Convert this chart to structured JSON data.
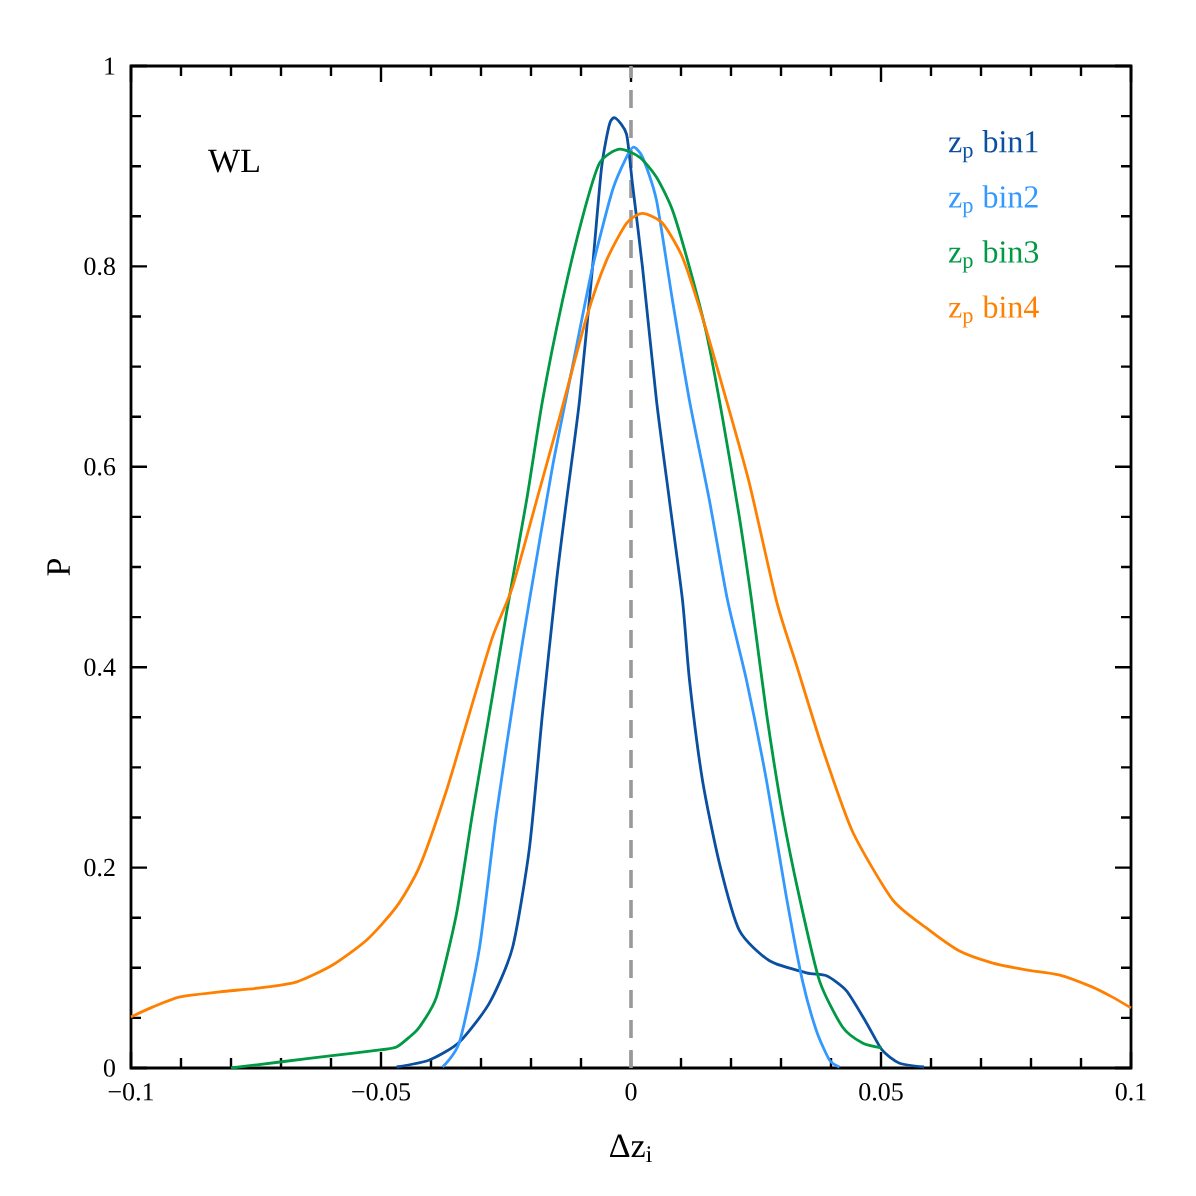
{
  "chart_data": {
    "type": "line",
    "xlabel": "Δz$_{i}$",
    "ylabel": "P",
    "annotations": [
      "WL"
    ],
    "legend": "top right",
    "xlim": [
      -0.1,
      0.1
    ],
    "ylim": [
      0,
      1
    ],
    "xticks": [
      {
        "value": -0.1,
        "label": "−0.1"
      },
      {
        "value": -0.09,
        "label": null
      },
      {
        "value": -0.08,
        "label": null
      },
      {
        "value": -0.07,
        "label": null
      },
      {
        "value": -0.06,
        "label": null
      },
      {
        "value": -0.05,
        "label": "−0.05"
      },
      {
        "value": -0.04,
        "label": null
      },
      {
        "value": -0.03,
        "label": null
      },
      {
        "value": -0.02,
        "label": null
      },
      {
        "value": -0.01,
        "label": null
      },
      0,
      {
        "value": 0.01,
        "label": null
      },
      {
        "value": 0.02,
        "label": null
      },
      {
        "value": 0.03,
        "label": null
      },
      {
        "value": 0.04,
        "label": null
      },
      0.05,
      {
        "value": 0.06,
        "label": null
      },
      {
        "value": 0.07,
        "label": null
      },
      {
        "value": 0.08,
        "label": null
      },
      {
        "value": 0.09,
        "label": null
      },
      0.1
    ],
    "yticks": [
      0,
      {
        "value": 0.05,
        "label": null
      },
      {
        "value": 0.1,
        "label": null
      },
      {
        "value": 0.15,
        "label": null
      },
      0.2,
      {
        "value": 0.25,
        "label": null
      },
      {
        "value": 0.3,
        "label": null
      },
      {
        "value": 0.35,
        "label": null
      },
      0.4,
      {
        "value": 0.45,
        "label": null
      },
      {
        "value": 0.5,
        "label": null
      },
      {
        "value": 0.55,
        "label": null
      },
      0.6,
      {
        "value": 0.65,
        "label": null
      },
      {
        "value": 0.7,
        "label": null
      },
      {
        "value": 0.75,
        "label": null
      },
      0.8,
      {
        "value": 0.85,
        "label": null
      },
      {
        "value": 0.9,
        "label": null
      },
      {
        "value": 0.95,
        "label": null
      },
      1
    ],
    "ref_lines": [
      {
        "axis": "x",
        "value": 0,
        "color": "#999999",
        "line_style": "dashed"
      }
    ],
    "series": [
      {
        "name": "z$_{p}$ bin1",
        "color": "#0a4fa0",
        "x": [
          -0.0469,
          -0.0403,
          -0.0343,
          -0.0283,
          -0.0237,
          -0.0203,
          -0.0177,
          -0.0149,
          -0.0129,
          -0.0103,
          -0.0077,
          -0.0059,
          -0.0043,
          -0.0031,
          -0.0009,
          0.0003,
          0.0023,
          0.0051,
          0.0077,
          0.0103,
          0.0117,
          0.0143,
          0.0177,
          0.0217,
          0.0277,
          0.0351,
          0.0391,
          0.0431,
          0.0471,
          0.0502,
          0.0536,
          0.0586
        ],
        "values": [
          0.001,
          0.008,
          0.026,
          0.065,
          0.12,
          0.22,
          0.354,
          0.486,
          0.566,
          0.666,
          0.799,
          0.898,
          0.942,
          0.948,
          0.932,
          0.882,
          0.799,
          0.666,
          0.566,
          0.467,
          0.387,
          0.287,
          0.204,
          0.137,
          0.107,
          0.095,
          0.092,
          0.077,
          0.045,
          0.018,
          0.005,
          0.001
        ]
      },
      {
        "name": "z$_{p}$ bin2",
        "color": "#3399ff",
        "x": [
          -0.0377,
          -0.0343,
          -0.0303,
          -0.0269,
          -0.0229,
          -0.0203,
          -0.0157,
          -0.0117,
          -0.0077,
          -0.0037,
          -0.0009,
          0.0005,
          0.0023,
          0.0051,
          0.0083,
          0.0117,
          0.0157,
          0.0193,
          0.0231,
          0.0271,
          0.0311,
          0.0343,
          0.0371,
          0.0397,
          0.0417
        ],
        "values": [
          0.001,
          0.026,
          0.12,
          0.254,
          0.387,
          0.467,
          0.6,
          0.7,
          0.799,
          0.876,
          0.909,
          0.919,
          0.909,
          0.866,
          0.766,
          0.666,
          0.566,
          0.467,
          0.387,
          0.287,
          0.17,
          0.087,
          0.037,
          0.008,
          0.001
        ]
      },
      {
        "name": "z$_{p}$ bin3",
        "color": "#009944",
        "x": [
          -0.08,
          -0.0702,
          -0.0602,
          -0.0502,
          -0.0469,
          -0.0443,
          -0.0423,
          -0.0389,
          -0.0349,
          -0.0317,
          -0.0283,
          -0.0249,
          -0.0209,
          -0.0177,
          -0.0137,
          -0.0097,
          -0.0063,
          -0.0023,
          0.0017,
          0.0051,
          0.0083,
          0.0117,
          0.0151,
          0.0183,
          0.0217,
          0.0241,
          0.0271,
          0.0303,
          0.0337,
          0.0377,
          0.0423,
          0.0463,
          0.0501
        ],
        "values": [
          0.0,
          0.006,
          0.012,
          0.018,
          0.021,
          0.031,
          0.041,
          0.071,
          0.154,
          0.254,
          0.354,
          0.454,
          0.566,
          0.666,
          0.766,
          0.849,
          0.903,
          0.917,
          0.909,
          0.889,
          0.856,
          0.799,
          0.733,
          0.649,
          0.549,
          0.467,
          0.354,
          0.254,
          0.17,
          0.087,
          0.041,
          0.025,
          0.02
        ]
      },
      {
        "name": "z$_{p}$ bin4",
        "color": "#ff8000",
        "x": [
          -0.1,
          -0.0956,
          -0.0902,
          -0.0822,
          -0.0742,
          -0.0668,
          -0.0596,
          -0.0528,
          -0.0469,
          -0.0423,
          -0.0369,
          -0.0323,
          -0.0277,
          -0.0237,
          -0.0189,
          -0.0143,
          -0.0089,
          -0.0049,
          -0.0009,
          0.0023,
          0.0063,
          0.0103,
          0.0143,
          0.0191,
          0.0237,
          0.0291,
          0.0331,
          0.0383,
          0.0443,
          0.0523,
          0.059,
          0.0656,
          0.0722,
          0.079,
          0.0856,
          0.0922,
          0.0962,
          0.1
        ],
        "values": [
          0.051,
          0.061,
          0.071,
          0.076,
          0.08,
          0.086,
          0.103,
          0.128,
          0.161,
          0.201,
          0.277,
          0.354,
          0.43,
          0.48,
          0.566,
          0.649,
          0.749,
          0.806,
          0.843,
          0.853,
          0.843,
          0.809,
          0.749,
          0.666,
          0.583,
          0.466,
          0.402,
          0.319,
          0.236,
          0.168,
          0.14,
          0.117,
          0.105,
          0.098,
          0.093,
          0.081,
          0.071,
          0.06
        ]
      }
    ]
  }
}
